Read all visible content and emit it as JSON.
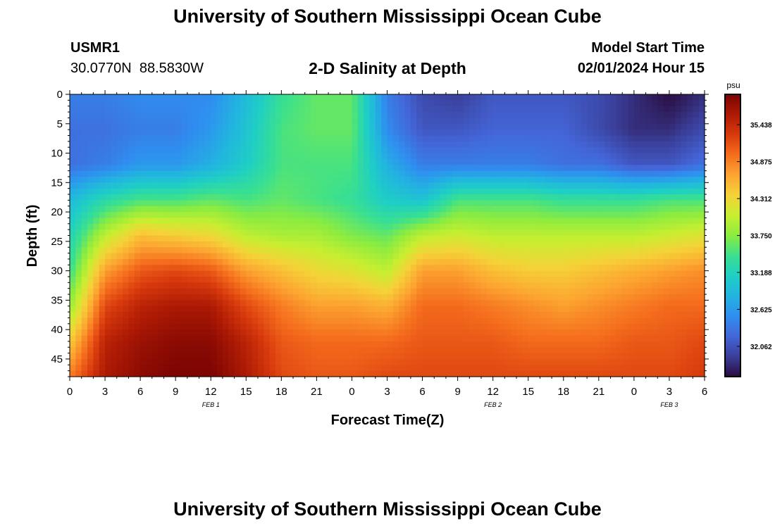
{
  "header": {
    "title": "University of Southern Mississippi Ocean Cube",
    "station": "USMR1",
    "coords": "30.0770N  88.5830W",
    "subtitle": "2-D Salinity at Depth",
    "model_start_label": "Model Start Time",
    "model_start_value": "02/01/2024 Hour 15"
  },
  "footer": {
    "title": "University of Southern Mississippi Ocean Cube"
  },
  "chart_data": {
    "type": "heatmap",
    "title": "2-D Salinity at Depth",
    "xlabel": "Forecast Time(Z)",
    "ylabel": "Depth (ft)",
    "x_ticks": [
      "0",
      "3",
      "6",
      "9",
      "12",
      "15",
      "18",
      "21",
      "0",
      "3",
      "6",
      "9",
      "12",
      "15",
      "18",
      "21",
      "0",
      "3",
      "6"
    ],
    "x_range_hours": [
      0,
      54
    ],
    "date_labels": [
      {
        "label": "FEB 1",
        "hour": 12
      },
      {
        "label": "FEB 2",
        "hour": 36
      },
      {
        "label": "FEB 3",
        "hour": 51
      }
    ],
    "y_ticks": [
      0,
      5,
      10,
      15,
      20,
      25,
      30,
      35,
      40,
      45
    ],
    "ylim": [
      0,
      48
    ],
    "colorbar": {
      "unit": "psu",
      "ticks": [
        35.438,
        34.875,
        34.312,
        33.75,
        33.188,
        32.625,
        32.062
      ],
      "range": [
        31.6,
        35.9
      ],
      "colors": [
        "#2a0c3e",
        "#3a3f9a",
        "#4466d8",
        "#2f8ef0",
        "#22b4e0",
        "#1fcfc4",
        "#3ae08f",
        "#8cec3f",
        "#c8ee30",
        "#f5d238",
        "#fca531",
        "#f56d1d",
        "#d83a0d",
        "#ad1a04",
        "#7b0403"
      ]
    },
    "grid": {
      "hours": [
        0,
        3,
        6,
        9,
        12,
        15,
        18,
        21,
        24,
        27,
        30,
        33,
        36,
        39,
        42,
        45,
        48,
        51,
        54
      ],
      "depths_ft": [
        0,
        6,
        12,
        18,
        24,
        30,
        36,
        42,
        48
      ],
      "salinity_psu": [
        [
          32.4,
          32.3,
          32.3,
          32.9,
          33.2,
          33.4,
          33.8,
          34.4,
          34.9
        ],
        [
          32.4,
          32.3,
          32.4,
          33.3,
          34.0,
          34.7,
          35.2,
          35.5,
          35.6
        ],
        [
          32.5,
          32.4,
          32.6,
          33.5,
          34.5,
          35.1,
          35.5,
          35.7,
          35.8
        ],
        [
          32.5,
          32.4,
          32.6,
          33.5,
          34.4,
          35.2,
          35.6,
          35.8,
          35.9
        ],
        [
          32.5,
          32.6,
          32.8,
          33.6,
          34.3,
          35.1,
          35.6,
          35.8,
          35.9
        ],
        [
          32.9,
          33.0,
          33.1,
          33.5,
          34.0,
          34.7,
          35.2,
          35.5,
          35.6
        ],
        [
          33.4,
          33.5,
          33.5,
          33.6,
          33.9,
          34.5,
          34.9,
          35.1,
          35.2
        ],
        [
          33.6,
          33.6,
          33.5,
          33.5,
          33.9,
          34.3,
          34.7,
          35.0,
          35.1
        ],
        [
          33.6,
          33.6,
          33.5,
          33.4,
          33.7,
          34.2,
          34.7,
          35.0,
          35.1
        ],
        [
          32.4,
          32.5,
          32.8,
          33.1,
          33.6,
          34.0,
          34.6,
          35.0,
          35.2
        ],
        [
          32.0,
          32.1,
          32.4,
          33.0,
          34.0,
          34.7,
          35.0,
          35.1,
          35.2
        ],
        [
          31.9,
          32.1,
          32.4,
          33.5,
          34.1,
          34.7,
          35.0,
          35.1,
          35.2
        ],
        [
          32.1,
          32.2,
          32.4,
          33.5,
          34.0,
          34.5,
          34.9,
          35.1,
          35.2
        ],
        [
          32.1,
          32.2,
          32.4,
          33.5,
          34.0,
          34.4,
          34.8,
          35.0,
          35.2
        ],
        [
          32.1,
          32.2,
          32.3,
          33.4,
          34.0,
          34.4,
          34.7,
          35.0,
          35.2
        ],
        [
          32.0,
          32.0,
          32.3,
          33.4,
          34.0,
          34.5,
          34.8,
          35.0,
          35.2
        ],
        [
          31.8,
          31.8,
          32.1,
          33.4,
          34.0,
          34.6,
          34.9,
          35.1,
          35.2
        ],
        [
          31.6,
          31.8,
          32.1,
          33.5,
          34.1,
          34.7,
          35.0,
          35.1,
          35.2
        ],
        [
          31.8,
          32.0,
          32.3,
          33.5,
          34.2,
          34.8,
          35.0,
          35.2,
          35.3
        ]
      ]
    }
  }
}
